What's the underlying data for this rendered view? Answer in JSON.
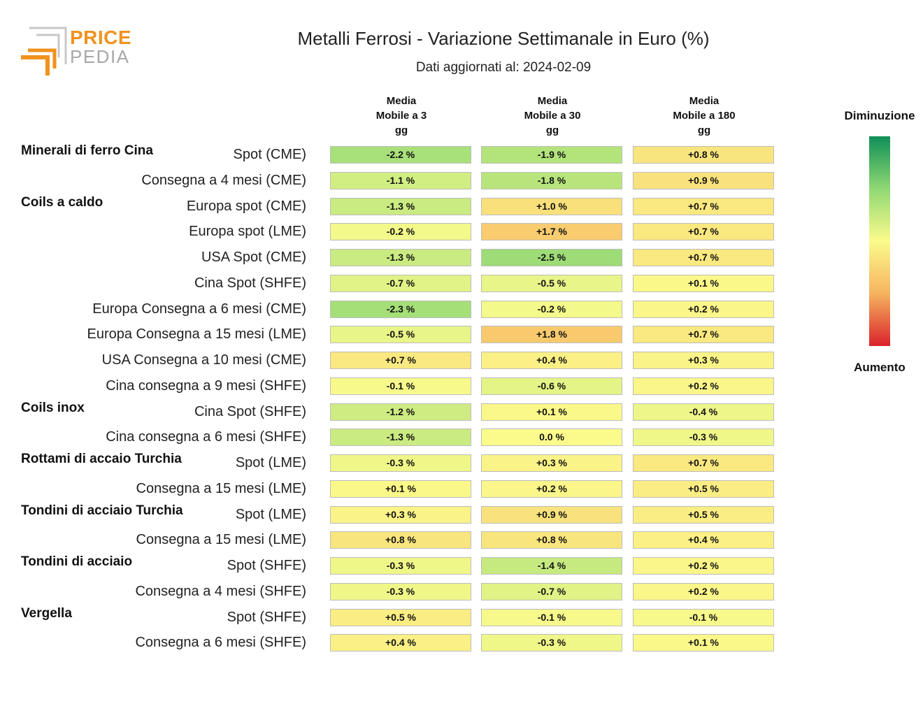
{
  "logo": {
    "line1": "PRICE",
    "line2": "PEDIA"
  },
  "title": "Metalli Ferrosi - Variazione Settimanale in Euro (%)",
  "subtitle": "Dati aggiornati al: 2024-02-09",
  "legend": {
    "top": "Diminuzione",
    "bottom": "Aumento",
    "colors": [
      "#0f8f57",
      "#8fd873",
      "#fbfb8c",
      "#f6b35f",
      "#d9222b"
    ]
  },
  "chart_data": {
    "type": "table",
    "columns": [
      {
        "lines": [
          "Media",
          "Mobile a 3",
          "gg"
        ]
      },
      {
        "lines": [
          "Media",
          "Mobile a 30",
          "gg"
        ]
      },
      {
        "lines": [
          "Media",
          "Mobile a 180",
          "gg"
        ]
      }
    ],
    "groups": [
      {
        "name": "Minerali di ferro Cina",
        "rows": [
          {
            "label": "Spot (CME)",
            "values": [
              -2.2,
              -1.9,
              0.8
            ]
          },
          {
            "label": "Consegna a 4 mesi (CME)",
            "values": [
              -1.1,
              -1.8,
              0.9
            ]
          }
        ]
      },
      {
        "name": "Coils a caldo",
        "rows": [
          {
            "label": "Europa spot (CME)",
            "values": [
              -1.3,
              1.0,
              0.7
            ]
          },
          {
            "label": "Europa spot (LME)",
            "values": [
              -0.2,
              1.7,
              0.7
            ]
          },
          {
            "label": "USA Spot (CME)",
            "values": [
              -1.3,
              -2.5,
              0.7
            ]
          },
          {
            "label": "Cina Spot (SHFE)",
            "values": [
              -0.7,
              -0.5,
              0.1
            ]
          },
          {
            "label": "Europa Consegna a 6 mesi (CME)",
            "values": [
              -2.3,
              -0.2,
              0.2
            ]
          },
          {
            "label": "Europa Consegna a 15 mesi (LME)",
            "values": [
              -0.5,
              1.8,
              0.7
            ]
          },
          {
            "label": "USA Consegna a 10 mesi (CME)",
            "values": [
              0.7,
              0.4,
              0.3
            ]
          },
          {
            "label": "Cina consegna a 9 mesi (SHFE)",
            "values": [
              -0.1,
              -0.6,
              0.2
            ]
          }
        ]
      },
      {
        "name": "Coils inox",
        "rows": [
          {
            "label": "Cina Spot (SHFE)",
            "values": [
              -1.2,
              0.1,
              -0.4
            ]
          },
          {
            "label": "Cina consegna a 6 mesi (SHFE)",
            "values": [
              -1.3,
              0.0,
              -0.3
            ]
          }
        ]
      },
      {
        "name": "Rottami di accaio Turchia",
        "rows": [
          {
            "label": "Spot (LME)",
            "values": [
              -0.3,
              0.3,
              0.7
            ]
          },
          {
            "label": "Consegna a 15 mesi (LME)",
            "values": [
              0.1,
              0.2,
              0.5
            ]
          }
        ]
      },
      {
        "name": "Tondini di acciaio Turchia",
        "rows": [
          {
            "label": "Spot (LME)",
            "values": [
              0.3,
              0.9,
              0.5
            ]
          },
          {
            "label": "Consegna a 15 mesi (LME)",
            "values": [
              0.8,
              0.8,
              0.4
            ]
          }
        ]
      },
      {
        "name": "Tondini di acciaio",
        "rows": [
          {
            "label": "Spot (SHFE)",
            "values": [
              -0.3,
              -1.4,
              0.2
            ]
          },
          {
            "label": "Consegna a 4 mesi (SHFE)",
            "values": [
              -0.3,
              -0.7,
              0.2
            ]
          }
        ]
      },
      {
        "name": "Vergella",
        "rows": [
          {
            "label": "Spot (SHFE)",
            "values": [
              0.5,
              -0.1,
              -0.1
            ]
          },
          {
            "label": "Consegna a 6 mesi (SHFE)",
            "values": [
              0.4,
              -0.3,
              0.1
            ]
          }
        ]
      }
    ]
  }
}
